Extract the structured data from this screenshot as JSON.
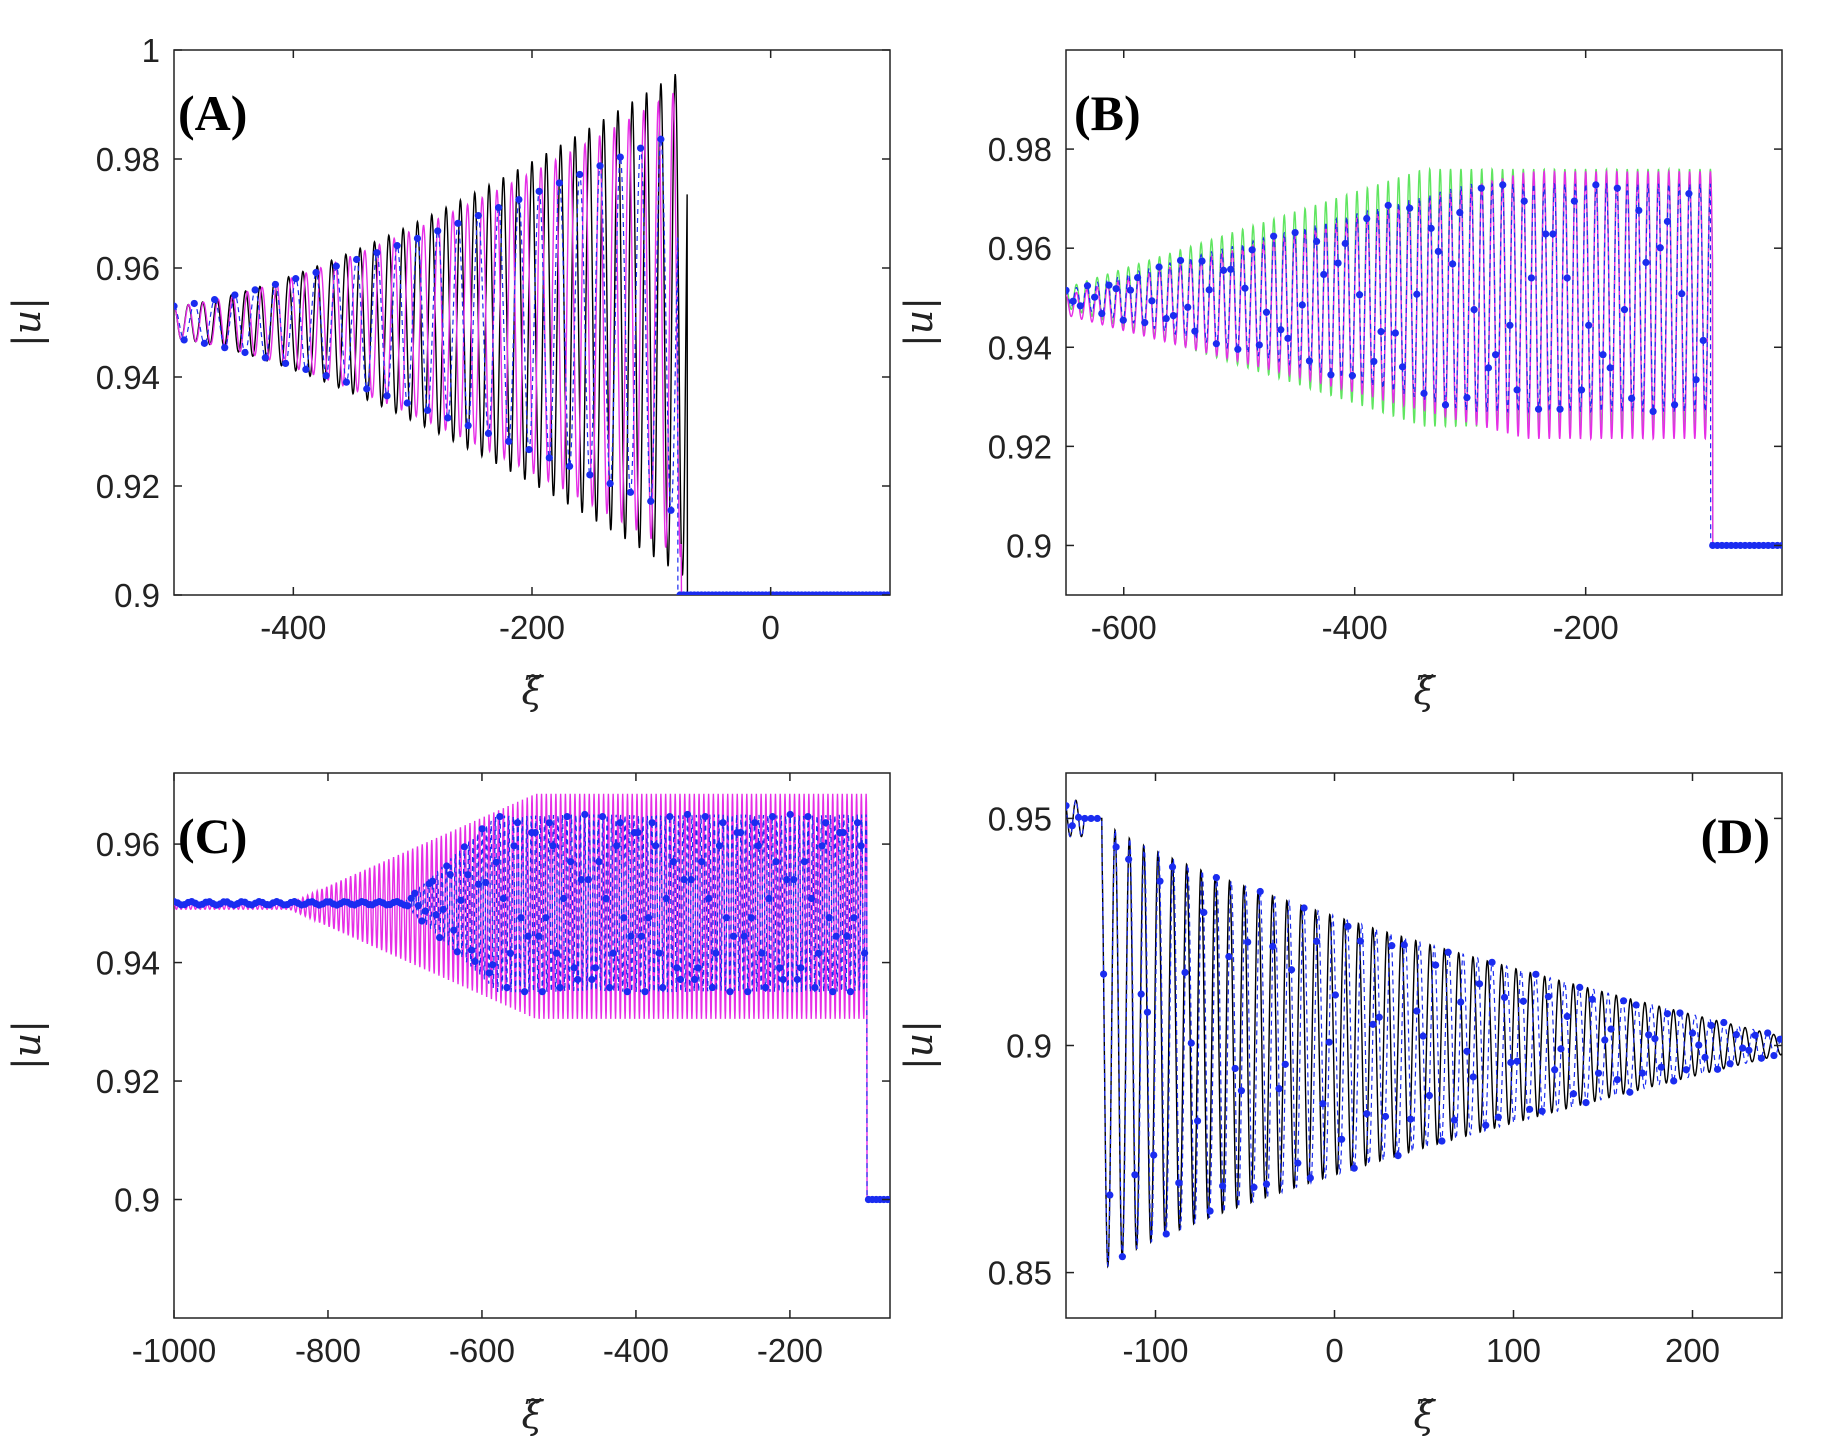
{
  "figure": {
    "colors": {
      "black_curve": "#000000",
      "magenta_curve": "#e62ee6",
      "green_curve": "#44e044",
      "blue_points": "#1a2cf0",
      "axis": "#222222"
    }
  },
  "chart_data": [
    {
      "type": "line",
      "panel_label": "(A)",
      "ylabel": "|u|",
      "xlabel": "ξ̃",
      "xlim": [
        -500,
        100
      ],
      "ylim": [
        0.9,
        1.0
      ],
      "xticks": [
        -400,
        -200,
        0
      ],
      "xtick_labels": [
        "-400",
        "-200",
        "0"
      ],
      "yticks": [
        0.9,
        0.92,
        0.94,
        0.96,
        0.98,
        1.0
      ],
      "ytick_labels": [
        "0.9",
        "0.92",
        "0.94",
        "0.96",
        "0.98",
        "1"
      ],
      "series": [
        {
          "name": "black",
          "style": "solid",
          "model": {
            "xstart": -500,
            "xfront": -70,
            "base": 0.95,
            "amp_start": 0.003,
            "amp_end": 0.047,
            "period": 12,
            "after": 0.9,
            "growth": 1.4
          }
        },
        {
          "name": "magenta",
          "style": "solid",
          "model": {
            "xstart": -500,
            "xfront": -75,
            "base": 0.95,
            "amp_start": 0.003,
            "amp_end": 0.043,
            "period": 12.3,
            "after": 0.9,
            "growth": 1.4
          }
        },
        {
          "name": "blue",
          "style": "dashed-dots",
          "model": {
            "xstart": -500,
            "xfront": -78,
            "base": 0.95,
            "amp_start": 0.003,
            "amp_end": 0.035,
            "period": 17,
            "after": 0.9,
            "growth": 1.3,
            "dotstep": 8.5,
            "tailstep": 3
          }
        }
      ]
    },
    {
      "type": "line",
      "panel_label": "(B)",
      "ylabel": "|u|",
      "xlabel": "ξ̃",
      "xlim": [
        -650,
        -30
      ],
      "ylim": [
        0.89,
        1.0
      ],
      "xticks": [
        -600,
        -400,
        -200
      ],
      "xtick_labels": [
        "-600",
        "-400",
        "-200"
      ],
      "yticks": [
        0.9,
        0.92,
        0.94,
        0.96,
        0.98
      ],
      "ytick_labels": [
        "0.9",
        "0.92",
        "0.94",
        "0.96",
        "0.98"
      ],
      "series": [
        {
          "name": "green",
          "style": "solid",
          "model": {
            "xstart": -650,
            "xfront": -90,
            "base": 0.95,
            "amp_start": 0.002,
            "amp_end": 0.026,
            "period": 9,
            "after": 0.9,
            "grow_end": -340
          }
        },
        {
          "name": "magenta",
          "style": "solid",
          "model": {
            "xstart": -650,
            "xfront": -90,
            "base": 0.9485,
            "amp_start": 0.002,
            "amp_end": 0.027,
            "period": 9,
            "after": 0.9,
            "grow_end": -250
          }
        },
        {
          "name": "blue",
          "style": "dashed-dots",
          "model": {
            "xstart": -650,
            "xfront": -92,
            "base": 0.95,
            "amp_start": 0.0015,
            "amp_end": 0.023,
            "period": 9,
            "after": 0.9,
            "grow_end": -300,
            "dotstep": 6.2,
            "tailstep": 4
          }
        }
      ]
    },
    {
      "type": "line",
      "panel_label": "(C)",
      "ylabel": "|u|",
      "xlabel": "ξ̃",
      "xlim": [
        -1000,
        -70
      ],
      "ylim": [
        0.88,
        0.972
      ],
      "xticks": [
        -1000,
        -800,
        -600,
        -400,
        -200
      ],
      "xtick_labels": [
        "-1000",
        "-800",
        "-600",
        "-400",
        "-200"
      ],
      "yticks": [
        0.9,
        0.92,
        0.94,
        0.96
      ],
      "ytick_labels": [
        "0.9",
        "0.92",
        "0.94",
        "0.96"
      ],
      "series": [
        {
          "name": "magenta",
          "style": "solid",
          "model": {
            "xstart": -1000,
            "xfront": -100,
            "base": 0.9495,
            "amp_start": 0.0005,
            "amp_end": 0.019,
            "period": 6.2,
            "after": 0.9,
            "bulge_x": -530,
            "bulge_amp": 0.001
          }
        },
        {
          "name": "blue",
          "style": "dashed-dots",
          "model": {
            "xstart": -1000,
            "xfront": -100,
            "base": 0.95,
            "amp_start": 0.0003,
            "amp_end": 0.015,
            "period": 5.8,
            "after": 0.9,
            "onset": -700,
            "dotstep": 4.6,
            "tailstep": 5
          }
        }
      ]
    },
    {
      "type": "line",
      "panel_label": "(D)",
      "ylabel": "|u|",
      "xlabel": "ξ̃",
      "xlim": [
        -150,
        250
      ],
      "ylim": [
        0.84,
        0.96
      ],
      "xticks": [
        -100,
        0,
        100,
        200
      ],
      "xtick_labels": [
        "-100",
        "0",
        "100",
        "200"
      ],
      "yticks": [
        0.85,
        0.9,
        0.95
      ],
      "ytick_labels": [
        "0.85",
        "0.9",
        "0.95"
      ],
      "series": [
        {
          "name": "black",
          "style": "solid",
          "model": {
            "xstart": -130,
            "xend": 250,
            "base": 0.9,
            "amp_start": 0.05,
            "amp_end": 0.002,
            "period": 8
          }
        },
        {
          "name": "blue",
          "style": "dashed-dots",
          "model": {
            "xstart": -130,
            "xend": 250,
            "base": 0.9,
            "amp_start": 0.05,
            "amp_end": 0.002,
            "period": 8.1,
            "dotstep": 3.5
          }
        }
      ]
    }
  ]
}
